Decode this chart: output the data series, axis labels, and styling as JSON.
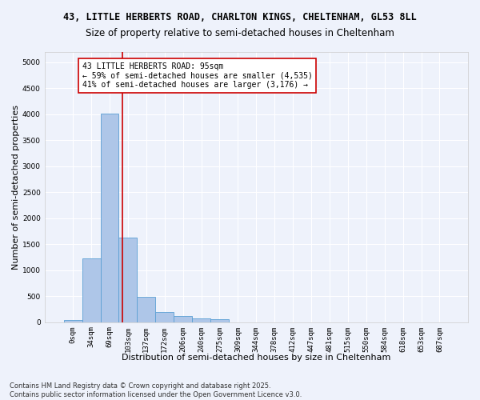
{
  "title_line1": "43, LITTLE HERBERTS ROAD, CHARLTON KINGS, CHELTENHAM, GL53 8LL",
  "title_line2": "Size of property relative to semi-detached houses in Cheltenham",
  "xlabel": "Distribution of semi-detached houses by size in Cheltenham",
  "ylabel": "Number of semi-detached properties",
  "bar_labels": [
    "0sqm",
    "34sqm",
    "69sqm",
    "103sqm",
    "137sqm",
    "172sqm",
    "206sqm",
    "240sqm",
    "275sqm",
    "309sqm",
    "344sqm",
    "378sqm",
    "412sqm",
    "447sqm",
    "481sqm",
    "515sqm",
    "550sqm",
    "584sqm",
    "618sqm",
    "653sqm",
    "687sqm"
  ],
  "bar_heights": [
    40,
    1230,
    4020,
    1620,
    480,
    190,
    110,
    70,
    55,
    0,
    0,
    0,
    0,
    0,
    0,
    0,
    0,
    0,
    0,
    0,
    0
  ],
  "bar_color": "#aec6e8",
  "bar_edge_color": "#5a9fd4",
  "red_line_x": 2.72,
  "annotation_text1": "43 LITTLE HERBERTS ROAD: 95sqm",
  "annotation_text2": "← 59% of semi-detached houses are smaller (4,535)",
  "annotation_text3": "41% of semi-detached houses are larger (3,176) →",
  "vline_color": "#cc0000",
  "annotation_box_color": "#ffffff",
  "annotation_box_edge": "#cc0000",
  "ylim": [
    0,
    5200
  ],
  "yticks": [
    0,
    500,
    1000,
    1500,
    2000,
    2500,
    3000,
    3500,
    4000,
    4500,
    5000
  ],
  "footer_line1": "Contains HM Land Registry data © Crown copyright and database right 2025.",
  "footer_line2": "Contains public sector information licensed under the Open Government Licence v3.0.",
  "background_color": "#eef2fb",
  "grid_color": "#ffffff",
  "title_fontsize": 8.5,
  "subtitle_fontsize": 8.5,
  "axis_label_fontsize": 8.0,
  "tick_fontsize": 6.5,
  "annotation_fontsize": 7.0,
  "footer_fontsize": 6.0
}
